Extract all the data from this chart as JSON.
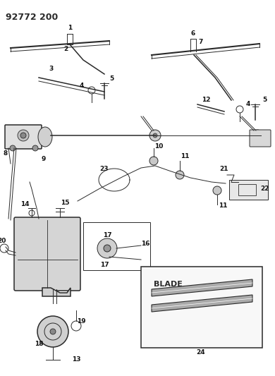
{
  "title": "92772 200",
  "bg_color": "#ffffff",
  "line_color": "#2a2a2a",
  "fig_width": 3.9,
  "fig_height": 5.33,
  "dpi": 100
}
